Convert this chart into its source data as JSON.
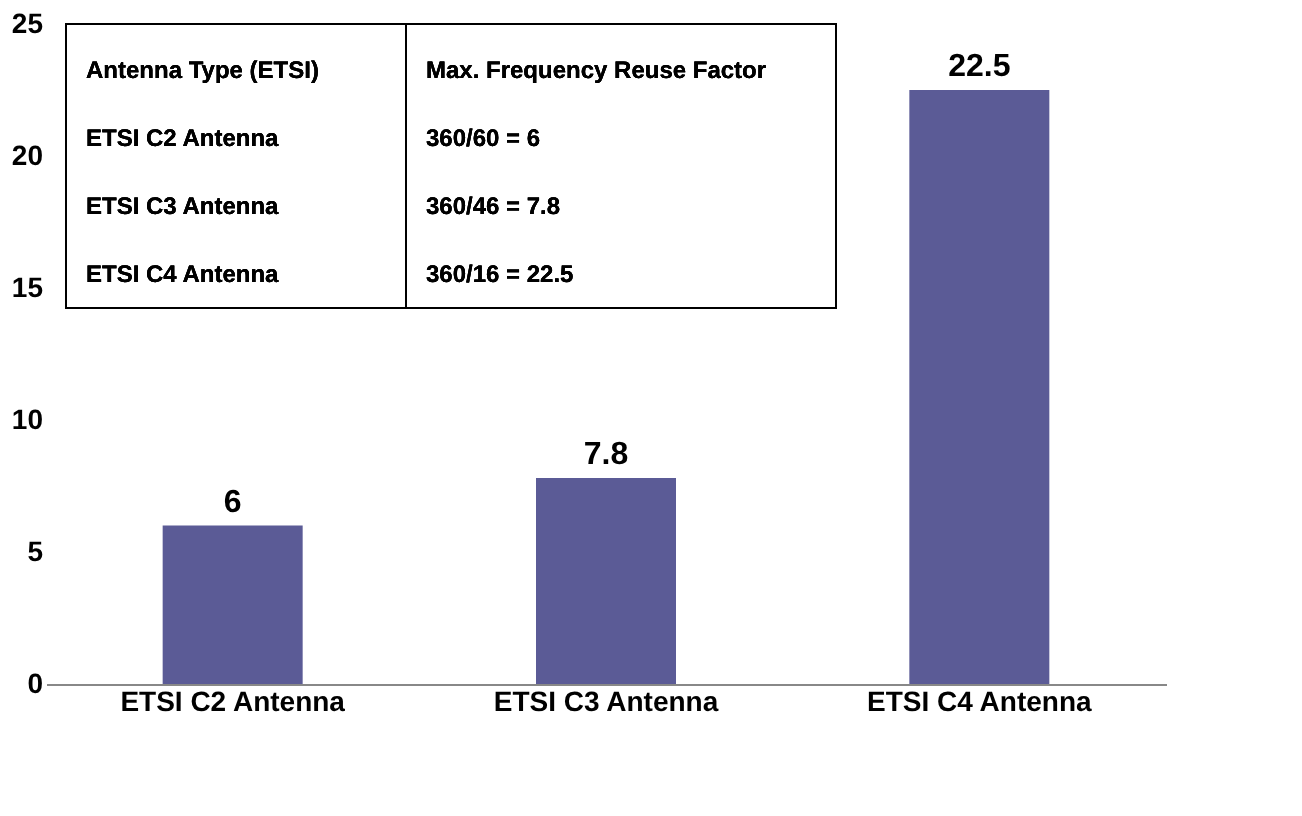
{
  "chart_data": {
    "type": "bar",
    "categories": [
      "ETSI C2 Antenna",
      "ETSI C3 Antenna",
      "ETSI C4 Antenna"
    ],
    "values": [
      6,
      7.8,
      22.5
    ],
    "color": "#5b5b96",
    "ylim": [
      0,
      25
    ],
    "yticks": [
      0,
      5,
      10,
      15,
      20,
      25
    ],
    "data_labels": true,
    "grid": false,
    "annotations": [
      "Antenna Type (ETSI)",
      "Max. Frequency Reuse Factor",
      "ETSI C2 Antenna",
      "360/60 = 6",
      "ETSI C3 Antenna",
      "360/46 = 7.8",
      "ETSI C4 Antenna",
      "360/16 = 22.5"
    ]
  }
}
